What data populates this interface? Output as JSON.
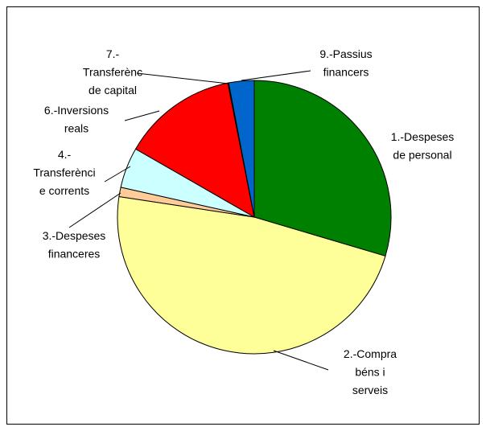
{
  "chart_data": {
    "type": "pie",
    "categories": [
      "1.-Despeses\nde personal",
      "2.-Compra\nbéns i\nserveis",
      "3.-Despeses\nfinanceres",
      "4.-\nTransferènci\ne corrents",
      "6.-Inversions\nreals",
      "7.-\nTransferènc\nde capital",
      "9.-Passius\nfinancers"
    ],
    "values": [
      29.6,
      47.8,
      1.1,
      4.8,
      13.6,
      0.1,
      3.0
    ],
    "colors": [
      "#008000",
      "#ffff99",
      "#ffcc99",
      "#ccffff",
      "#ff0000",
      "#800080",
      "#0066cc"
    ]
  }
}
